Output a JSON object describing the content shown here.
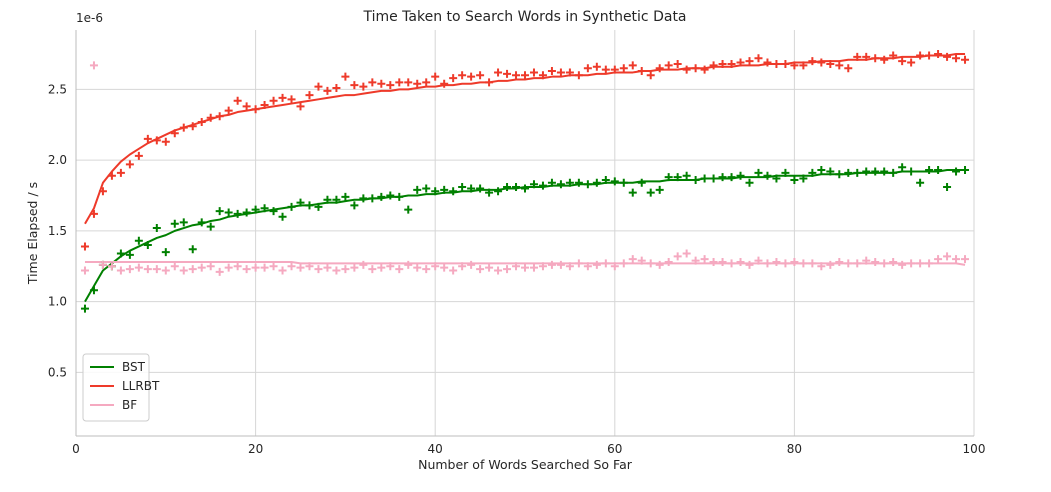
{
  "chart_data": {
    "type": "scatter",
    "title": "Time Taken to Search Words in Synthetic Data",
    "xlabel": "Number of Words Searched So Far",
    "ylabel": "Time Elapsed / s",
    "y_offset_label": "1e-6",
    "xlim": [
      0,
      100
    ],
    "ylim": [
      0.05,
      2.92
    ],
    "x_ticks": [
      0,
      20,
      40,
      60,
      80,
      100
    ],
    "y_ticks": [
      0.5,
      1.0,
      1.5,
      2.0,
      2.5
    ],
    "x_tick_labels": [
      "0",
      "20",
      "40",
      "60",
      "80",
      "100"
    ],
    "y_tick_labels": [
      "0.5",
      "1.0",
      "1.5",
      "2.0",
      "2.5"
    ],
    "grid": true,
    "legend_position": "lower-left",
    "x": [
      1,
      2,
      3,
      4,
      5,
      6,
      7,
      8,
      9,
      10,
      11,
      12,
      13,
      14,
      15,
      16,
      17,
      18,
      19,
      20,
      21,
      22,
      23,
      24,
      25,
      26,
      27,
      28,
      29,
      30,
      31,
      32,
      33,
      34,
      35,
      36,
      37,
      38,
      39,
      40,
      41,
      42,
      43,
      44,
      45,
      46,
      47,
      48,
      49,
      50,
      51,
      52,
      53,
      54,
      55,
      56,
      57,
      58,
      59,
      60,
      61,
      62,
      63,
      64,
      65,
      66,
      67,
      68,
      69,
      70,
      71,
      72,
      73,
      74,
      75,
      76,
      77,
      78,
      79,
      80,
      81,
      82,
      83,
      84,
      85,
      86,
      87,
      88,
      89,
      90,
      91,
      92,
      93,
      94,
      95,
      96,
      97,
      98,
      99
    ],
    "series": [
      {
        "name": "BST",
        "color": "#008000",
        "fit": [
          1.0,
          1.11,
          1.22,
          1.27,
          1.32,
          1.36,
          1.39,
          1.42,
          1.45,
          1.47,
          1.5,
          1.52,
          1.54,
          1.55,
          1.57,
          1.58,
          1.6,
          1.61,
          1.62,
          1.63,
          1.64,
          1.65,
          1.66,
          1.67,
          1.68,
          1.68,
          1.69,
          1.7,
          1.7,
          1.71,
          1.72,
          1.72,
          1.73,
          1.73,
          1.74,
          1.74,
          1.75,
          1.75,
          1.76,
          1.76,
          1.77,
          1.77,
          1.78,
          1.78,
          1.79,
          1.79,
          1.79,
          1.8,
          1.8,
          1.81,
          1.81,
          1.81,
          1.82,
          1.82,
          1.82,
          1.83,
          1.83,
          1.83,
          1.84,
          1.84,
          1.84,
          1.84,
          1.85,
          1.85,
          1.85,
          1.86,
          1.86,
          1.86,
          1.86,
          1.87,
          1.87,
          1.87,
          1.87,
          1.88,
          1.88,
          1.88,
          1.88,
          1.89,
          1.89,
          1.89,
          1.89,
          1.89,
          1.9,
          1.9,
          1.9,
          1.9,
          1.91,
          1.91,
          1.91,
          1.91,
          1.91,
          1.92,
          1.92,
          1.92,
          1.92,
          1.92,
          1.93,
          1.93,
          1.93
        ],
        "points": [
          0.95,
          1.08,
          1.26,
          1.25,
          1.34,
          1.33,
          1.43,
          1.4,
          1.52,
          1.35,
          1.55,
          1.56,
          1.37,
          1.56,
          1.53,
          1.64,
          1.63,
          1.62,
          1.63,
          1.65,
          1.66,
          1.64,
          1.6,
          1.67,
          1.7,
          1.68,
          1.67,
          1.72,
          1.72,
          1.74,
          1.68,
          1.73,
          1.73,
          1.74,
          1.75,
          1.74,
          1.65,
          1.79,
          1.8,
          1.78,
          1.79,
          1.78,
          1.81,
          1.8,
          1.8,
          1.77,
          1.78,
          1.81,
          1.81,
          1.8,
          1.83,
          1.82,
          1.84,
          1.83,
          1.84,
          1.84,
          1.83,
          1.84,
          1.86,
          1.85,
          1.84,
          1.77,
          1.84,
          1.77,
          1.79,
          1.88,
          1.88,
          1.89,
          1.86,
          1.87,
          1.87,
          1.88,
          1.88,
          1.89,
          1.84,
          1.91,
          1.89,
          1.87,
          1.91,
          1.86,
          1.87,
          1.91,
          1.93,
          1.92,
          1.9,
          1.91,
          1.91,
          1.92,
          1.92,
          1.92,
          1.91,
          1.95,
          1.92,
          1.84,
          1.93,
          1.93,
          1.81,
          1.92,
          1.93
        ]
      },
      {
        "name": "LLRBT",
        "color": "#ee3a2a",
        "fit": [
          1.55,
          1.66,
          1.84,
          1.92,
          1.99,
          2.04,
          2.08,
          2.12,
          2.15,
          2.18,
          2.21,
          2.23,
          2.25,
          2.27,
          2.29,
          2.31,
          2.32,
          2.34,
          2.35,
          2.36,
          2.37,
          2.38,
          2.39,
          2.4,
          2.41,
          2.42,
          2.43,
          2.44,
          2.45,
          2.46,
          2.46,
          2.47,
          2.48,
          2.49,
          2.49,
          2.5,
          2.5,
          2.51,
          2.52,
          2.52,
          2.53,
          2.53,
          2.54,
          2.54,
          2.55,
          2.55,
          2.56,
          2.56,
          2.57,
          2.57,
          2.58,
          2.58,
          2.59,
          2.59,
          2.6,
          2.6,
          2.6,
          2.61,
          2.61,
          2.62,
          2.62,
          2.62,
          2.63,
          2.63,
          2.64,
          2.64,
          2.64,
          2.65,
          2.65,
          2.65,
          2.66,
          2.66,
          2.66,
          2.67,
          2.67,
          2.67,
          2.68,
          2.68,
          2.68,
          2.69,
          2.69,
          2.69,
          2.7,
          2.7,
          2.7,
          2.71,
          2.71,
          2.71,
          2.72,
          2.72,
          2.72,
          2.73,
          2.73,
          2.73,
          2.74,
          2.74,
          2.74,
          2.75,
          2.75
        ],
        "points": [
          1.39,
          1.62,
          1.78,
          1.89,
          1.91,
          1.97,
          2.03,
          2.15,
          2.14,
          2.13,
          2.19,
          2.23,
          2.24,
          2.27,
          2.3,
          2.31,
          2.35,
          2.42,
          2.38,
          2.36,
          2.39,
          2.42,
          2.44,
          2.43,
          2.38,
          2.46,
          2.52,
          2.49,
          2.51,
          2.59,
          2.53,
          2.52,
          2.55,
          2.54,
          2.53,
          2.55,
          2.55,
          2.54,
          2.55,
          2.59,
          2.54,
          2.58,
          2.6,
          2.59,
          2.6,
          2.55,
          2.62,
          2.61,
          2.6,
          2.6,
          2.62,
          2.6,
          2.63,
          2.62,
          2.62,
          2.6,
          2.65,
          2.66,
          2.64,
          2.64,
          2.65,
          2.67,
          2.63,
          2.6,
          2.65,
          2.67,
          2.68,
          2.64,
          2.65,
          2.64,
          2.67,
          2.68,
          2.68,
          2.69,
          2.7,
          2.72,
          2.69,
          2.68,
          2.68,
          2.67,
          2.67,
          2.7,
          2.69,
          2.68,
          2.67,
          2.65,
          2.73,
          2.73,
          2.72,
          2.71,
          2.74,
          2.7,
          2.69,
          2.74,
          2.74,
          2.75,
          2.73,
          2.72,
          2.71
        ]
      },
      {
        "name": "BF",
        "color": "#f5a9c0",
        "fit": [
          1.28,
          1.28,
          1.28,
          1.28,
          1.28,
          1.28,
          1.28,
          1.28,
          1.28,
          1.28,
          1.28,
          1.28,
          1.28,
          1.28,
          1.28,
          1.28,
          1.28,
          1.28,
          1.28,
          1.28,
          1.28,
          1.28,
          1.28,
          1.28,
          1.27,
          1.27,
          1.27,
          1.27,
          1.27,
          1.27,
          1.27,
          1.27,
          1.27,
          1.27,
          1.27,
          1.27,
          1.27,
          1.27,
          1.27,
          1.27,
          1.27,
          1.27,
          1.27,
          1.27,
          1.27,
          1.27,
          1.27,
          1.27,
          1.27,
          1.27,
          1.27,
          1.27,
          1.27,
          1.27,
          1.27,
          1.27,
          1.27,
          1.27,
          1.27,
          1.27,
          1.27,
          1.27,
          1.27,
          1.27,
          1.27,
          1.27,
          1.27,
          1.27,
          1.27,
          1.27,
          1.27,
          1.27,
          1.27,
          1.27,
          1.27,
          1.27,
          1.27,
          1.27,
          1.27,
          1.27,
          1.27,
          1.27,
          1.27,
          1.27,
          1.27,
          1.27,
          1.27,
          1.27,
          1.27,
          1.27,
          1.27,
          1.27,
          1.27,
          1.27,
          1.27,
          1.27,
          1.27,
          1.27,
          1.26
        ],
        "points": [
          1.22,
          2.67,
          1.26,
          1.25,
          1.22,
          1.23,
          1.24,
          1.23,
          1.23,
          1.22,
          1.25,
          1.22,
          1.23,
          1.24,
          1.25,
          1.21,
          1.24,
          1.25,
          1.23,
          1.24,
          1.24,
          1.25,
          1.22,
          1.25,
          1.24,
          1.25,
          1.23,
          1.24,
          1.22,
          1.23,
          1.24,
          1.26,
          1.23,
          1.24,
          1.25,
          1.23,
          1.26,
          1.24,
          1.23,
          1.25,
          1.24,
          1.22,
          1.25,
          1.26,
          1.23,
          1.24,
          1.22,
          1.23,
          1.25,
          1.24,
          1.24,
          1.25,
          1.26,
          1.26,
          1.25,
          1.27,
          1.25,
          1.26,
          1.27,
          1.25,
          1.27,
          1.3,
          1.29,
          1.27,
          1.26,
          1.28,
          1.32,
          1.34,
          1.29,
          1.3,
          1.28,
          1.28,
          1.27,
          1.28,
          1.26,
          1.29,
          1.27,
          1.28,
          1.27,
          1.28,
          1.27,
          1.27,
          1.25,
          1.26,
          1.28,
          1.27,
          1.27,
          1.29,
          1.28,
          1.27,
          1.28,
          1.26,
          1.27,
          1.27,
          1.27,
          1.3,
          1.32,
          1.3,
          1.3
        ]
      }
    ]
  }
}
